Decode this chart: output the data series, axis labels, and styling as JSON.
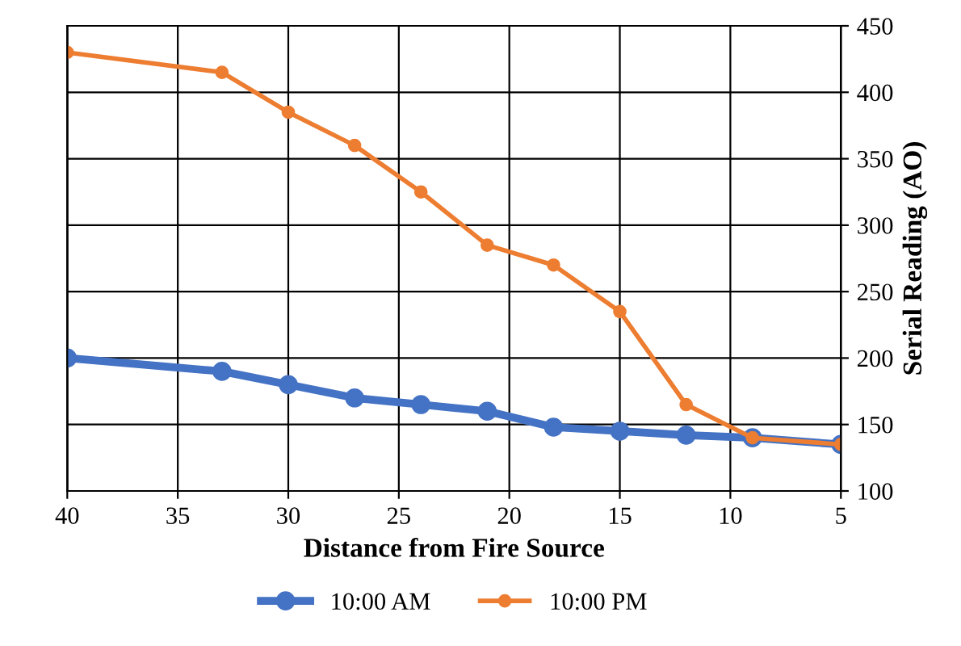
{
  "chart_data": {
    "type": "line",
    "xlabel": "Distance from Fire Source",
    "y2label": "Serial Reading (AO)",
    "x": [
      40,
      33,
      30,
      27,
      24,
      21,
      18,
      15,
      12,
      9,
      5
    ],
    "series": [
      {
        "name": "10:00 AM",
        "color": "#4472c4",
        "axis": "y2",
        "values": [
          200,
          190,
          180,
          170,
          165,
          160,
          148,
          145,
          142,
          140,
          135
        ]
      },
      {
        "name": "10:00 PM",
        "color": "#ed7d31",
        "axis": "y2",
        "values": [
          430,
          415,
          385,
          360,
          325,
          285,
          270,
          235,
          165,
          140,
          135
        ]
      }
    ],
    "xlim": [
      40,
      5
    ],
    "xticks": [
      40,
      35,
      30,
      25,
      20,
      15,
      10,
      5
    ],
    "y2lim": [
      100,
      450
    ],
    "y2ticks": [
      100,
      150,
      200,
      250,
      300,
      350,
      400,
      450
    ],
    "grid": true,
    "legend": "bottom",
    "marker": "circle",
    "line_style": "solid"
  }
}
